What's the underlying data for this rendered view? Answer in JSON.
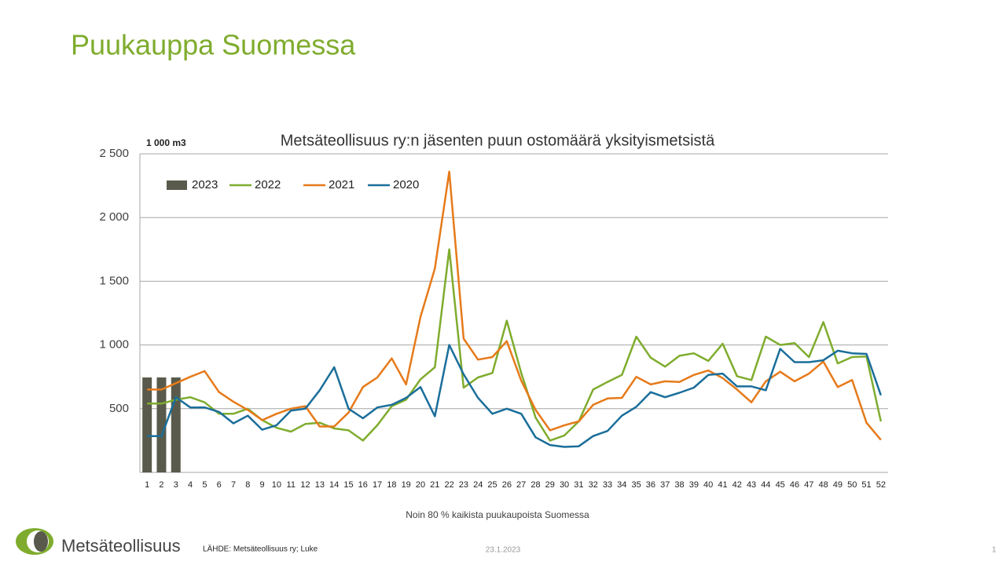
{
  "slide_title": "Puukauppa Suomessa",
  "logo_text": "Metsäteollisuus",
  "source": "LÄHDE:  Metsäteollisuus ry; Luke",
  "date": "23.1.2023",
  "page_number": "1",
  "chart_data": {
    "type": "line",
    "title": "Metsäteollisuus ry:n jäsenten puun ostomäärä yksityismetsistä",
    "y_unit_label": "1 000 m3",
    "x_label": "Noin 80 % kaikista puukaupoista Suomessa",
    "categories": [
      1,
      2,
      3,
      4,
      5,
      6,
      7,
      8,
      9,
      10,
      11,
      12,
      13,
      14,
      15,
      16,
      17,
      18,
      19,
      20,
      21,
      22,
      23,
      24,
      25,
      26,
      27,
      28,
      29,
      30,
      31,
      32,
      33,
      34,
      35,
      36,
      37,
      38,
      39,
      40,
      41,
      42,
      43,
      44,
      45,
      46,
      47,
      48,
      49,
      50,
      51,
      52
    ],
    "ylim": [
      0,
      2500
    ],
    "yticks": [
      {
        "value": 500,
        "label": "500"
      },
      {
        "value": 1000,
        "label": "1 000"
      },
      {
        "value": 1500,
        "label": "1 500"
      },
      {
        "value": 2000,
        "label": "2 000"
      },
      {
        "value": 2500,
        "label": "2 500"
      }
    ],
    "grid": true,
    "legend": "upper left",
    "series": [
      {
        "name": "2023",
        "type": "bar",
        "color": "#595a4b",
        "values": [
          745,
          745,
          745,
          null,
          null,
          null,
          null,
          null,
          null,
          null,
          null,
          null,
          null,
          null,
          null,
          null,
          null,
          null,
          null,
          null,
          null,
          null,
          null,
          null,
          null,
          null,
          null,
          null,
          null,
          null,
          null,
          null,
          null,
          null,
          null,
          null,
          null,
          null,
          null,
          null,
          null,
          null,
          null,
          null,
          null,
          null,
          null,
          null,
          null,
          null,
          null,
          null
        ]
      },
      {
        "name": "2022",
        "type": "line",
        "color": "#7fac2e",
        "values": [
          540,
          540,
          570,
          590,
          550,
          460,
          460,
          500,
          410,
          350,
          320,
          380,
          390,
          345,
          330,
          250,
          370,
          520,
          570,
          730,
          825,
          1750,
          665,
          745,
          780,
          1190,
          780,
          430,
          250,
          290,
          400,
          650,
          710,
          765,
          1065,
          900,
          830,
          915,
          935,
          875,
          1010,
          755,
          725,
          1065,
          1000,
          1015,
          905,
          1180,
          855,
          905,
          910,
          400
        ]
      },
      {
        "name": "2021",
        "type": "line",
        "color": "#e67a1a",
        "values": [
          650,
          650,
          700,
          750,
          795,
          630,
          555,
          490,
          410,
          460,
          500,
          520,
          360,
          360,
          470,
          670,
          745,
          895,
          690,
          1220,
          1600,
          2360,
          1050,
          885,
          905,
          1030,
          720,
          490,
          330,
          370,
          400,
          530,
          580,
          585,
          750,
          690,
          715,
          710,
          765,
          800,
          740,
          650,
          550,
          715,
          790,
          715,
          775,
          870,
          670,
          725,
          390,
          255
        ]
      },
      {
        "name": "2020",
        "type": "line",
        "color": "#1a6e9a",
        "values": [
          285,
          285,
          590,
          510,
          510,
          475,
          385,
          445,
          335,
          370,
          485,
          500,
          645,
          825,
          500,
          425,
          510,
          530,
          585,
          670,
          440,
          1000,
          770,
          585,
          460,
          500,
          460,
          275,
          215,
          200,
          205,
          285,
          325,
          445,
          515,
          630,
          590,
          625,
          665,
          765,
          775,
          675,
          675,
          645,
          970,
          865,
          865,
          880,
          955,
          935,
          930,
          605
        ]
      }
    ]
  }
}
